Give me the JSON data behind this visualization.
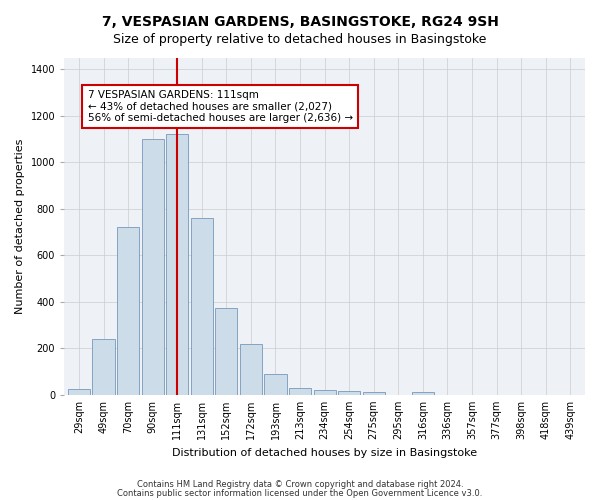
{
  "title": "7, VESPASIAN GARDENS, BASINGSTOKE, RG24 9SH",
  "subtitle": "Size of property relative to detached houses in Basingstoke",
  "xlabel": "Distribution of detached houses by size in Basingstoke",
  "ylabel": "Number of detached properties",
  "categories": [
    "29sqm",
    "49sqm",
    "70sqm",
    "90sqm",
    "111sqm",
    "131sqm",
    "152sqm",
    "172sqm",
    "193sqm",
    "213sqm",
    "234sqm",
    "254sqm",
    "275sqm",
    "295sqm",
    "316sqm",
    "336sqm",
    "357sqm",
    "377sqm",
    "398sqm",
    "418sqm",
    "439sqm"
  ],
  "bar_values": [
    25,
    240,
    720,
    1100,
    1120,
    760,
    375,
    220,
    90,
    30,
    20,
    18,
    12,
    0,
    10,
    0,
    0,
    0,
    0,
    0,
    0
  ],
  "bar_color": "#ccdce8",
  "bar_edge_color": "#7799bb",
  "vline_x_idx": 4,
  "vline_color": "#cc0000",
  "annotation_line1": "7 VESPASIAN GARDENS: 111sqm",
  "annotation_line2": "← 43% of detached houses are smaller (2,027)",
  "annotation_line3": "56% of semi-detached houses are larger (2,636) →",
  "annotation_box_color": "#ffffff",
  "annotation_box_edge": "#cc0000",
  "ylim": [
    0,
    1450
  ],
  "yticks": [
    0,
    200,
    400,
    600,
    800,
    1000,
    1200,
    1400
  ],
  "footer1": "Contains HM Land Registry data © Crown copyright and database right 2024.",
  "footer2": "Contains public sector information licensed under the Open Government Licence v3.0.",
  "plot_bg_color": "#eef2f6",
  "title_fontsize": 10,
  "subtitle_fontsize": 9,
  "axis_label_fontsize": 8,
  "tick_fontsize": 7,
  "annotation_fontsize": 7.5,
  "footer_fontsize": 6
}
